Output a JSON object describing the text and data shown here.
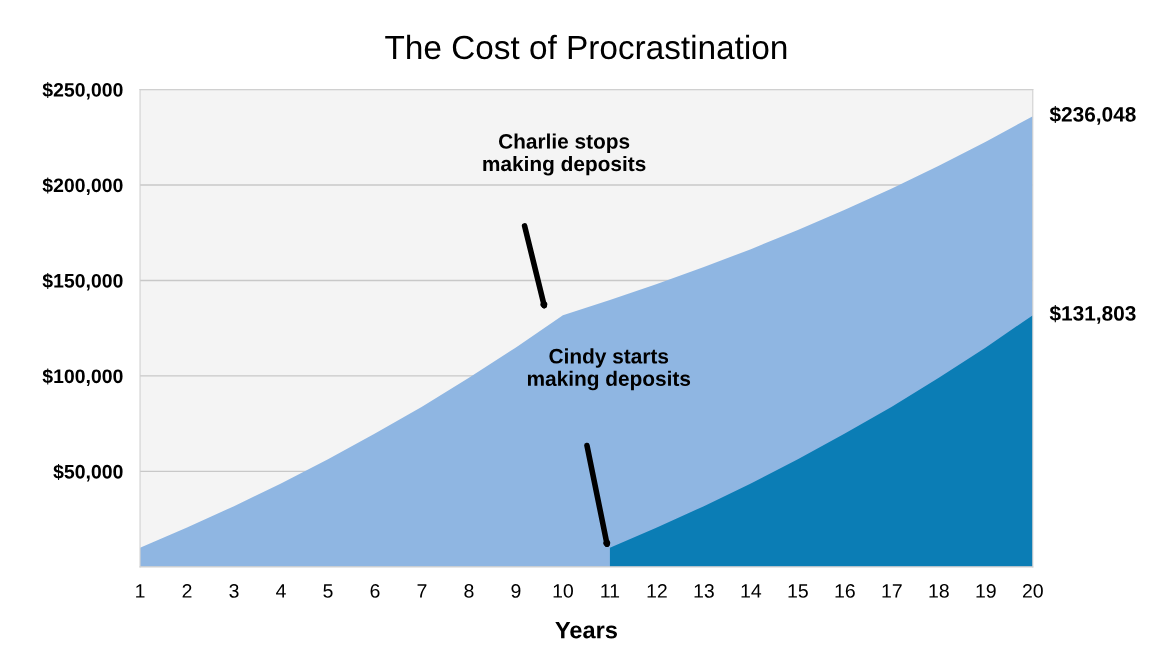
{
  "chart_data": {
    "type": "area",
    "title": "The Cost of Procrastination",
    "xlabel": "Years",
    "series": [
      {
        "name": null,
        "color": "#8fb6e2",
        "x": [
          1,
          2,
          3,
          4,
          5,
          6,
          7,
          8,
          9,
          10,
          11,
          12,
          13,
          14,
          15,
          16,
          17,
          18,
          19,
          20
        ],
        "values": [
          10000,
          20600,
          31800,
          43700,
          56400,
          69800,
          83900,
          99000,
          114900,
          131800,
          139700,
          148100,
          157000,
          166400,
          176400,
          187000,
          198200,
          210100,
          222700,
          236048
        ]
      },
      {
        "name": null,
        "color": "#0b7db5",
        "x": [
          11,
          12,
          13,
          14,
          15,
          16,
          17,
          18,
          19,
          20
        ],
        "values": [
          10000,
          20600,
          31800,
          43700,
          56400,
          69800,
          83900,
          99000,
          114900,
          131803
        ]
      }
    ],
    "xlim": [
      1,
      20
    ],
    "xticks": [
      1,
      2,
      3,
      4,
      5,
      6,
      7,
      8,
      9,
      10,
      11,
      12,
      13,
      14,
      15,
      16,
      17,
      18,
      19,
      20
    ],
    "ylim": [
      0,
      250000
    ],
    "yticks": [
      {
        "value": 0,
        "label": null
      },
      {
        "value": 50000,
        "label": "$50,000"
      },
      {
        "value": 100000,
        "label": "$100,000"
      },
      {
        "value": 150000,
        "label": "$150,000"
      },
      {
        "value": 200000,
        "label": "$200,000"
      },
      {
        "value": 250000,
        "label": "$250,000"
      }
    ],
    "grid": "y",
    "legend": false,
    "annotations": [
      {
        "text": "$236,048",
        "x": 20,
        "y": 236048
      },
      {
        "text": "$131,803",
        "x": 20,
        "y": 131803
      },
      "Charlie stops\nmaking deposits",
      "Cindy starts\nmaking deposits"
    ]
  }
}
